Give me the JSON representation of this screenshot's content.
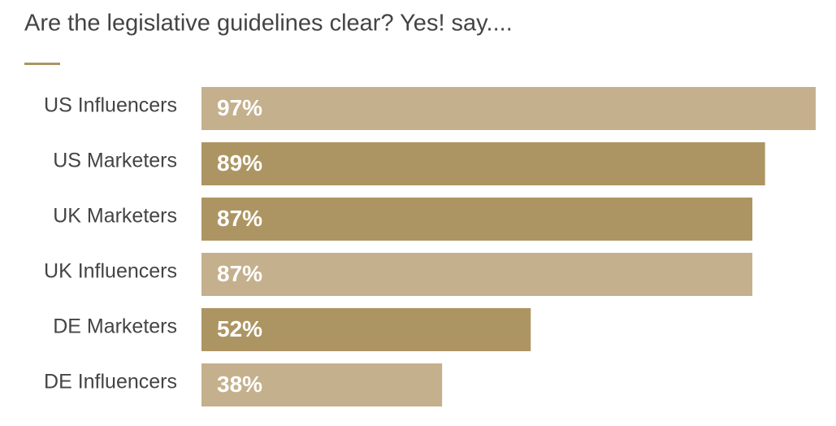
{
  "chart_data": {
    "type": "hbar",
    "title": "Are the legislative guidelines clear? Yes! say....",
    "categories": [
      "US Influencers",
      "US Marketers",
      "UK Marketers",
      "UK Influencers",
      "DE Marketers",
      "DE Influencers"
    ],
    "values": [
      97,
      89,
      87,
      87,
      52,
      38
    ],
    "value_labels": [
      "97%",
      "89%",
      "87%",
      "87%",
      "52%",
      "38%"
    ],
    "colors": [
      "#c4b08c",
      "#ad9563",
      "#ad9563",
      "#c4b08c",
      "#ad9563",
      "#c4b08c"
    ],
    "xlim": [
      0,
      100
    ]
  }
}
